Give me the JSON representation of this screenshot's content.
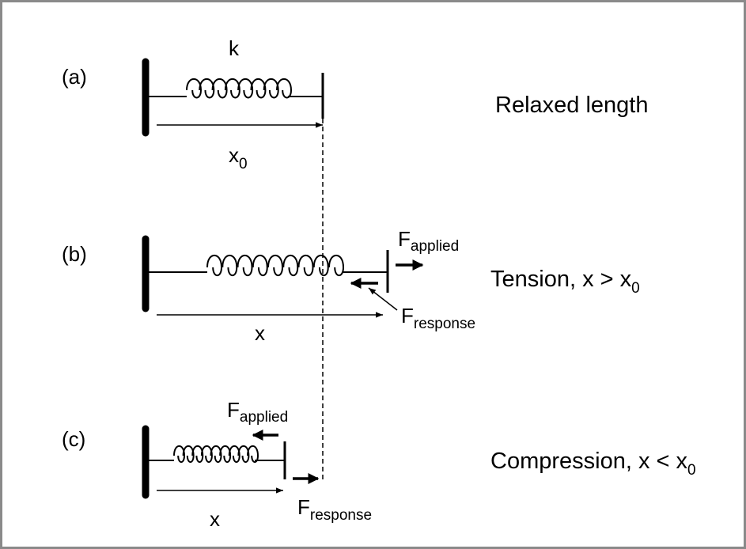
{
  "panels": {
    "a": {
      "tag": "(a)",
      "spring_label": "k",
      "length_symbol": "x",
      "length_sub": "0",
      "caption": "Relaxed length"
    },
    "b": {
      "tag": "(b)",
      "applied_symbol": "F",
      "applied_sub": "applied",
      "response_symbol": "F",
      "response_sub": "response",
      "length_symbol": "x",
      "caption_main": "Tension, x > x",
      "caption_sub": "0"
    },
    "c": {
      "tag": "(c)",
      "applied_symbol": "F",
      "applied_sub": "applied",
      "response_symbol": "F",
      "response_sub": "response",
      "length_symbol": "x",
      "caption_main": "Compression, x < x",
      "caption_sub": "0"
    }
  },
  "colors": {
    "ink": "#000000",
    "frame": "#8a8a8a",
    "background": "#ffffff"
  }
}
